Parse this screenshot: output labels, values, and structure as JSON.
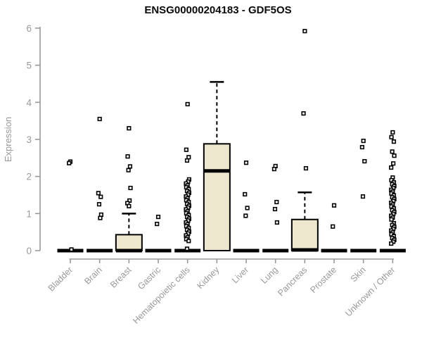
{
  "chart_data": {
    "type": "boxplot",
    "title": "ENSG00000204183 - GDF5OS",
    "ylabel": "Expression",
    "xlabel": "",
    "ylim": [
      0,
      6
    ],
    "yticks": [
      0,
      1,
      2,
      3,
      4,
      5,
      6
    ],
    "grid": false,
    "legend": "none",
    "categories": [
      "Bladder",
      "Brain",
      "Breast",
      "Gastric",
      "Hematopoietic cells",
      "Kidney",
      "Liver",
      "Lung",
      "Pancreas",
      "Prostate",
      "Skin",
      "Unknown / Other"
    ],
    "series": [
      {
        "category": "Bladder",
        "q1": 0,
        "median": 0,
        "q3": 0,
        "whisker_low": 0,
        "whisker_high": 0,
        "outliers": [
          2.4,
          2.36,
          0.03
        ]
      },
      {
        "category": "Brain",
        "q1": 0,
        "median": 0,
        "q3": 0,
        "whisker_low": 0,
        "whisker_high": 0,
        "outliers": [
          3.55,
          1.55,
          1.45,
          1.25,
          0.97,
          0.88
        ]
      },
      {
        "category": "Breast",
        "q1": 0,
        "median": 0,
        "q3": 0.43,
        "whisker_low": 0,
        "whisker_high": 1.0,
        "outliers": [
          3.3,
          2.54,
          2.27,
          2.17,
          1.69,
          1.35,
          1.28,
          1.2
        ]
      },
      {
        "category": "Gastric",
        "q1": 0,
        "median": 0,
        "q3": 0,
        "whisker_low": 0,
        "whisker_high": 0,
        "outliers": [
          0.91,
          0.72
        ]
      },
      {
        "category": "Hematopoietic cells",
        "q1": 0,
        "median": 0,
        "q3": 0,
        "whisker_low": 0,
        "whisker_high": 0,
        "outliers": [
          3.95,
          2.72,
          2.52,
          2.43,
          1.92,
          1.86,
          1.81,
          1.76,
          1.71,
          1.66,
          1.61,
          1.56,
          1.51,
          1.46,
          1.41,
          1.36,
          1.31,
          1.26,
          1.21,
          1.16,
          1.11,
          1.06,
          1.01,
          0.96,
          0.91,
          0.86,
          0.81,
          0.76,
          0.71,
          0.66,
          0.61,
          0.56,
          0.51,
          0.46,
          0.41,
          0.36,
          0.31,
          0.26,
          0.05
        ]
      },
      {
        "category": "Kidney",
        "q1": 0,
        "median": 2.15,
        "q3": 2.88,
        "whisker_low": 0,
        "whisker_high": 4.55,
        "outliers": []
      },
      {
        "category": "Liver",
        "q1": 0,
        "median": 0,
        "q3": 0,
        "whisker_low": 0,
        "whisker_high": 0,
        "outliers": [
          2.37,
          1.52,
          1.15,
          0.94
        ]
      },
      {
        "category": "Lung",
        "q1": 0,
        "median": 0,
        "q3": 0,
        "whisker_low": 0,
        "whisker_high": 0,
        "outliers": [
          2.28,
          2.2,
          1.31,
          1.12,
          0.76
        ]
      },
      {
        "category": "Pancreas",
        "q1": 0,
        "median": 0.02,
        "q3": 0.84,
        "whisker_low": 0,
        "whisker_high": 1.57,
        "outliers": [
          5.92,
          3.7,
          2.22
        ]
      },
      {
        "category": "Prostate",
        "q1": 0,
        "median": 0,
        "q3": 0,
        "whisker_low": 0,
        "whisker_high": 0,
        "outliers": [
          1.22,
          0.65
        ]
      },
      {
        "category": "Skin",
        "q1": 0,
        "median": 0,
        "q3": 0,
        "whisker_low": 0,
        "whisker_high": 0,
        "outliers": [
          2.96,
          2.79,
          2.41,
          1.46
        ]
      },
      {
        "category": "Unknown / Other",
        "q1": 0,
        "median": 0,
        "q3": 0,
        "whisker_low": 0,
        "whisker_high": 0,
        "outliers": [
          3.19,
          3.06,
          2.94,
          2.67,
          2.56,
          2.35,
          2.24,
          1.97,
          1.9,
          1.84,
          1.79,
          1.74,
          1.69,
          1.64,
          1.59,
          1.54,
          1.49,
          1.44,
          1.39,
          1.34,
          1.29,
          1.24,
          1.19,
          1.14,
          1.09,
          1.04,
          0.99,
          0.94,
          0.89,
          0.84,
          0.74,
          0.69,
          0.64,
          0.59,
          0.54,
          0.49,
          0.44,
          0.39,
          0.34,
          0.29,
          0.24,
          0.19
        ]
      }
    ],
    "colors": {
      "box_fill": "#EDE8CD",
      "box_stroke": "#000000",
      "median": "#000000",
      "outlier_stroke": "#000000",
      "outlier_fill": "#ffffff",
      "axis": "#999999",
      "tick_label": "#999999",
      "title": "#0a0a0a",
      "background": "#ffffff"
    }
  }
}
